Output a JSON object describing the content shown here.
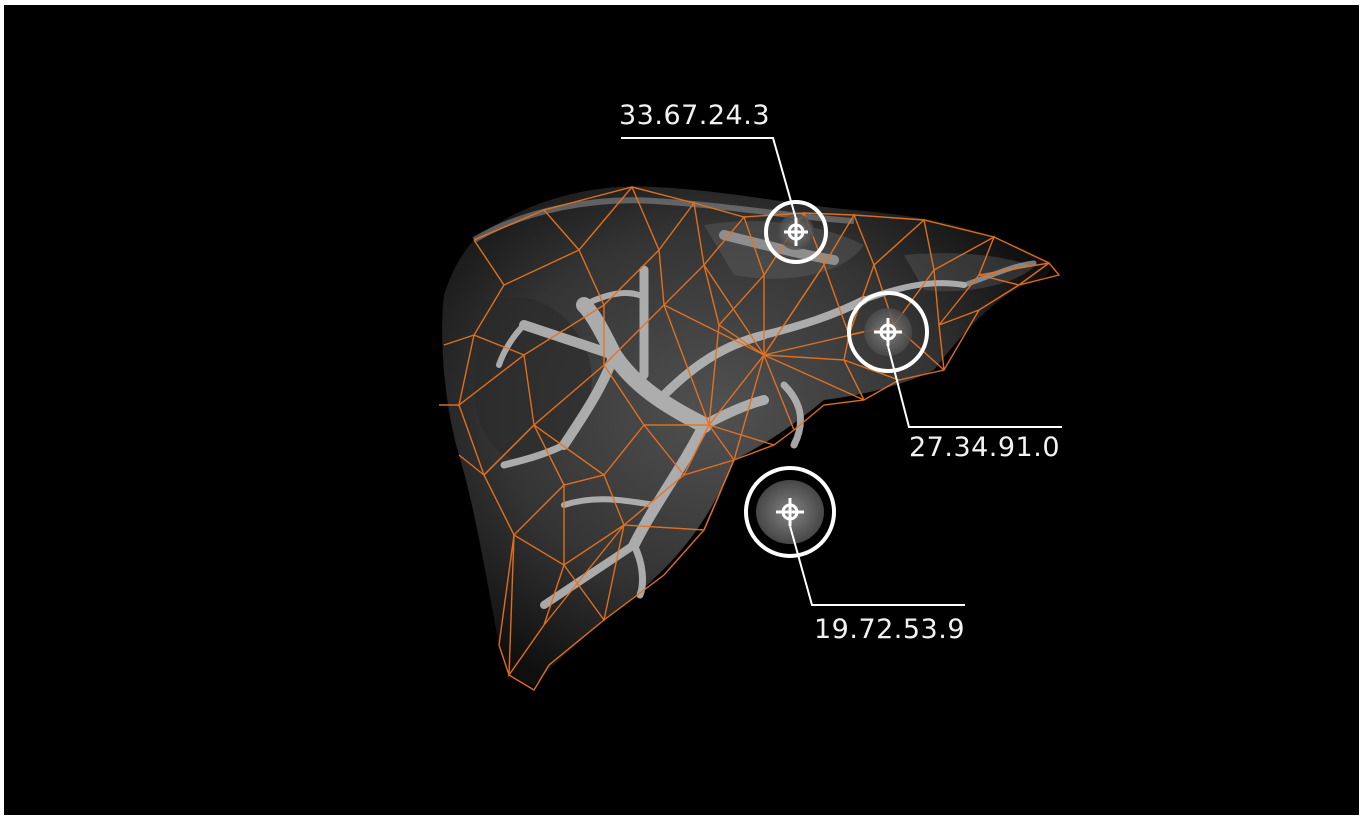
{
  "viewport": {
    "background_color": "#000000",
    "mesh_color": "#e8731f",
    "marker_color": "#ffffff"
  },
  "markers": [
    {
      "id": "marker-1",
      "coordinate": "33.67.24.3",
      "icon": "crosshair-icon"
    },
    {
      "id": "marker-2",
      "coordinate": "27.34.91.0",
      "icon": "crosshair-icon"
    },
    {
      "id": "marker-3",
      "coordinate": "19.72.53.9",
      "icon": "crosshair-icon"
    }
  ]
}
